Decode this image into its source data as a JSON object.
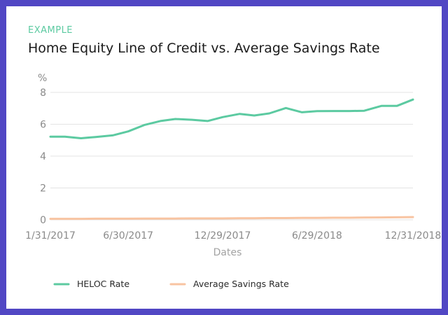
{
  "header": {
    "eyebrow": "EXAMPLE",
    "title": "Home Equity Line of Credit vs. Average Savings Rate"
  },
  "colors": {
    "frame": "#5147c4",
    "heloc": "#5ccaa1",
    "savings": "#f8c4a2",
    "grid": "#e3e3e3",
    "text_muted": "#8a8a8a"
  },
  "chart_data": {
    "type": "line",
    "title": "Home Equity Line of Credit vs. Average Savings Rate",
    "xlabel": "Dates",
    "ylabel": "%",
    "ylim": [
      0,
      8
    ],
    "yticks": [
      0,
      2,
      4,
      6,
      8
    ],
    "xlim": [
      "2017-01-31",
      "2018-12-31"
    ],
    "xticks": [
      "1/31/2017",
      "6/30/2017",
      "12/29/2017",
      "6/29/2018",
      "12/31/2018"
    ],
    "grid": true,
    "legend_position": "bottom",
    "x": [
      "2017-01-31",
      "2017-02-28",
      "2017-03-31",
      "2017-04-28",
      "2017-05-31",
      "2017-06-30",
      "2017-07-31",
      "2017-08-31",
      "2017-09-29",
      "2017-10-31",
      "2017-11-30",
      "2017-12-29",
      "2018-01-31",
      "2018-02-28",
      "2018-03-29",
      "2018-04-30",
      "2018-05-31",
      "2018-06-29",
      "2018-07-31",
      "2018-08-31",
      "2018-09-28",
      "2018-10-31",
      "2018-11-30",
      "2018-12-31"
    ],
    "series": [
      {
        "name": "HELOC Rate",
        "values": [
          5.22,
          5.22,
          5.12,
          5.2,
          5.3,
          5.55,
          5.95,
          6.2,
          6.33,
          6.28,
          6.2,
          6.45,
          6.65,
          6.55,
          6.68,
          7.02,
          6.75,
          6.82,
          6.83,
          6.83,
          6.85,
          7.15,
          7.15,
          7.55
        ]
      },
      {
        "name": "Average Savings Rate",
        "values": [
          0.06,
          0.06,
          0.06,
          0.07,
          0.07,
          0.07,
          0.08,
          0.08,
          0.08,
          0.09,
          0.09,
          0.09,
          0.1,
          0.1,
          0.11,
          0.11,
          0.12,
          0.12,
          0.13,
          0.13,
          0.14,
          0.15,
          0.16,
          0.17
        ]
      }
    ]
  }
}
